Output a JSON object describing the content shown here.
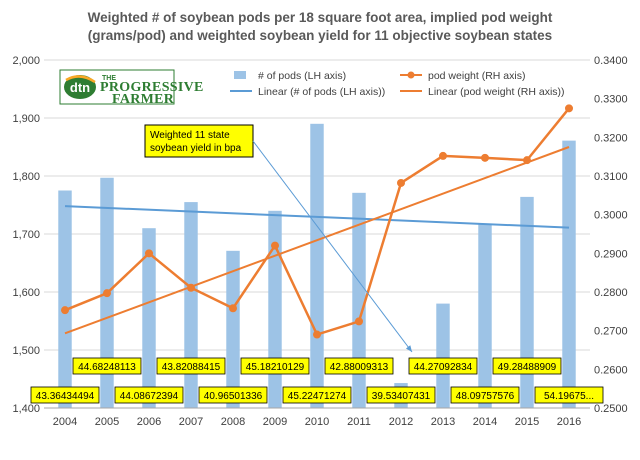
{
  "chart_data": {
    "type": "bar",
    "title_lines": [
      "Weighted # of soybean pods per 18 square foot area, implied pod weight",
      "(grams/pod) and weighted soybean yield for 11 objective soybean states"
    ],
    "categories": [
      "2004",
      "2005",
      "2006",
      "2007",
      "2008",
      "2009",
      "2010",
      "2011",
      "2012",
      "2013",
      "2014",
      "2015",
      "2016"
    ],
    "left_axis": {
      "ylim": [
        1400,
        2000
      ],
      "ticks": [
        "1,400",
        "1,500",
        "1,600",
        "1,700",
        "1,800",
        "1,900",
        "2,000"
      ],
      "tick_values": [
        1400,
        1500,
        1600,
        1700,
        1800,
        1900,
        2000
      ]
    },
    "right_axis": {
      "ylim": [
        0.25,
        0.34
      ],
      "ticks": [
        "0.2500",
        "0.2600",
        "0.2700",
        "0.2800",
        "0.2900",
        "0.3000",
        "0.3100",
        "0.3200",
        "0.3300",
        "0.3400"
      ],
      "tick_values": [
        0.25,
        0.26,
        0.27,
        0.28,
        0.29,
        0.3,
        0.31,
        0.32,
        0.33,
        0.34
      ]
    },
    "series": [
      {
        "name": "# of pods (LH axis)",
        "type": "bar",
        "axis": "left",
        "color": "#9dc3e6",
        "values": [
          1775,
          1797,
          1710,
          1755,
          1671,
          1740,
          1890,
          1771,
          1443,
          1580,
          1718,
          1764,
          1861
        ]
      },
      {
        "name": "pod weight (RH axis)",
        "type": "line",
        "axis": "right",
        "color": "#ed7d31",
        "values": [
          0.2753,
          0.2797,
          0.29,
          0.2811,
          0.2758,
          0.292,
          0.269,
          0.2724,
          0.3082,
          0.3152,
          0.3147,
          0.3141,
          0.3275
        ]
      },
      {
        "name": "Linear (# of pods (LH axis))",
        "type": "trend",
        "axis": "left",
        "color": "#5b9bd5",
        "start": 1748,
        "end": 1711
      },
      {
        "name": "Linear (pod weight (RH axis))",
        "type": "trend",
        "axis": "right",
        "color": "#ed7d31",
        "start": 0.2693,
        "end": 0.3175
      }
    ],
    "yield_labels": [
      "43.36434494",
      "44.68248113",
      "44.08672394",
      "43.82088415",
      "40.96501336",
      "45.18210129",
      "45.22471274",
      "42.88009313",
      "39.53407431",
      "44.27092834",
      "48.09757576",
      "49.28488909",
      "54.19675..."
    ],
    "callout": {
      "lines": [
        "Weighted 11 state",
        "soybean yield in bpa"
      ]
    },
    "colors": {
      "bar": "#9dc3e6",
      "pod_line": "#ed7d31",
      "trend_blue": "#5b9bd5",
      "label_fill": "#ffff00",
      "grid": "#d9d9d9"
    },
    "legend": {
      "placement": "top-right"
    }
  },
  "logo": {
    "badge": "dtn",
    "line1": "THE",
    "line2": "PROGRESSIVE",
    "line3": "FARMER"
  }
}
